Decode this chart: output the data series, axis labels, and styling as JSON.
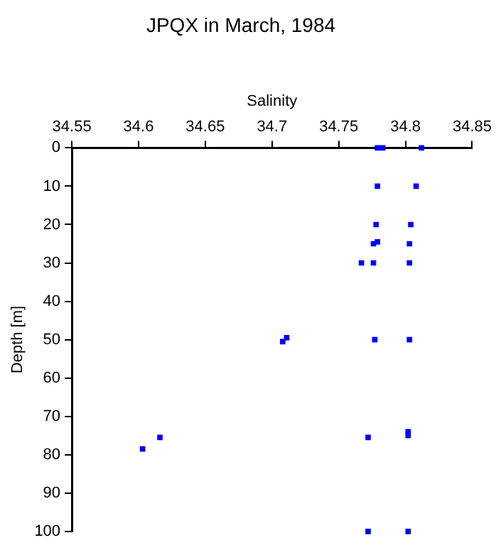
{
  "chart_data": {
    "type": "scatter",
    "title": "JPQX in March, 1984",
    "xlabel": "Salinity",
    "ylabel": "Depth [m]",
    "xlim": [
      34.55,
      34.85
    ],
    "xticks": [
      34.55,
      34.6,
      34.65,
      34.7,
      34.75,
      34.8,
      34.85
    ],
    "ylim": [
      100,
      0
    ],
    "yticks": [
      0,
      10,
      20,
      30,
      40,
      50,
      60,
      70,
      80,
      90,
      100
    ],
    "grid": false,
    "legend": false,
    "marker": "square",
    "series": [
      {
        "color": "#0000ff",
        "x": [
          34.779,
          34.783,
          34.812,
          34.779,
          34.808,
          34.778,
          34.804,
          34.779,
          34.776,
          34.803,
          34.767,
          34.776,
          34.803,
          34.711,
          34.708,
          34.777,
          34.803,
          34.802,
          34.802,
          34.772,
          34.616,
          34.603,
          34.772,
          34.802
        ],
        "values": [
          0,
          0,
          0,
          10,
          10,
          20,
          20,
          24.5,
          25,
          25,
          30,
          30,
          30,
          49.5,
          50.5,
          50,
          50,
          74,
          75,
          75.5,
          75.5,
          78.5,
          100,
          100
        ]
      }
    ]
  }
}
